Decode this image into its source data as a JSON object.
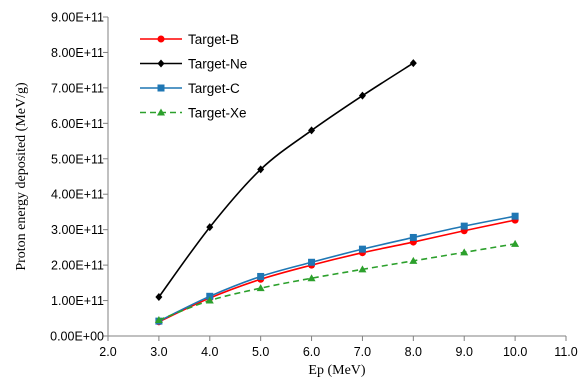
{
  "chart_data": {
    "type": "line",
    "title": "",
    "xlabel": "Ep (MeV)",
    "ylabel": "Proton energy deposited (MeV/g)",
    "xlim": [
      2.0,
      11.0
    ],
    "ylim": [
      0,
      900000000000.0
    ],
    "xticks": [
      2,
      3,
      4,
      5,
      6,
      7,
      8,
      9,
      10,
      11
    ],
    "xtick_labels": [
      "2.0",
      "3.0",
      "4.0",
      "5.0",
      "6.0",
      "7.0",
      "8.0",
      "9.0",
      "10.0",
      "11.0"
    ],
    "yticks": [
      0,
      100000000000.0,
      200000000000.0,
      300000000000.0,
      400000000000.0,
      500000000000.0,
      600000000000.0,
      700000000000.0,
      800000000000.0,
      900000000000.0
    ],
    "ytick_labels": [
      "0.00E+00",
      "1.00E+11",
      "2.00E+11",
      "3.00E+11",
      "4.00E+11",
      "5.00E+11",
      "6.00E+11",
      "7.00E+11",
      "8.00E+11",
      "9.00E+11"
    ],
    "grid": false,
    "legend_position": "top-left",
    "series": [
      {
        "name": "Target-B",
        "color": "#ff0000",
        "marker": "circle",
        "dash": "solid",
        "x": [
          3,
          4,
          5,
          6,
          7,
          8,
          9,
          10
        ],
        "y": [
          40000000000.0,
          107000000000.0,
          160000000000.0,
          200000000000.0,
          235000000000.0,
          265000000000.0,
          297000000000.0,
          327000000000.0
        ]
      },
      {
        "name": "Target-Ne",
        "color": "#000000",
        "marker": "diamond",
        "dash": "solid",
        "x": [
          3,
          4,
          5,
          6,
          7,
          8
        ],
        "y": [
          110000000000.0,
          307000000000.0,
          470000000000.0,
          580000000000.0,
          678000000000.0,
          770000000000.0
        ]
      },
      {
        "name": "Target-C",
        "color": "#1f77b4",
        "marker": "square",
        "dash": "solid",
        "x": [
          3,
          4,
          5,
          6,
          7,
          8,
          9,
          10
        ],
        "y": [
          42000000000.0,
          112000000000.0,
          168000000000.0,
          208000000000.0,
          245000000000.0,
          278000000000.0,
          310000000000.0,
          338000000000.0
        ]
      },
      {
        "name": "Target-Xe",
        "color": "#2ca02c",
        "marker": "triangle",
        "dash": "dashed",
        "x": [
          3,
          4,
          5,
          6,
          7,
          8,
          9,
          10
        ],
        "y": [
          45000000000.0,
          100000000000.0,
          135000000000.0,
          163000000000.0,
          188000000000.0,
          212000000000.0,
          236000000000.0,
          260000000000.0
        ]
      }
    ]
  }
}
